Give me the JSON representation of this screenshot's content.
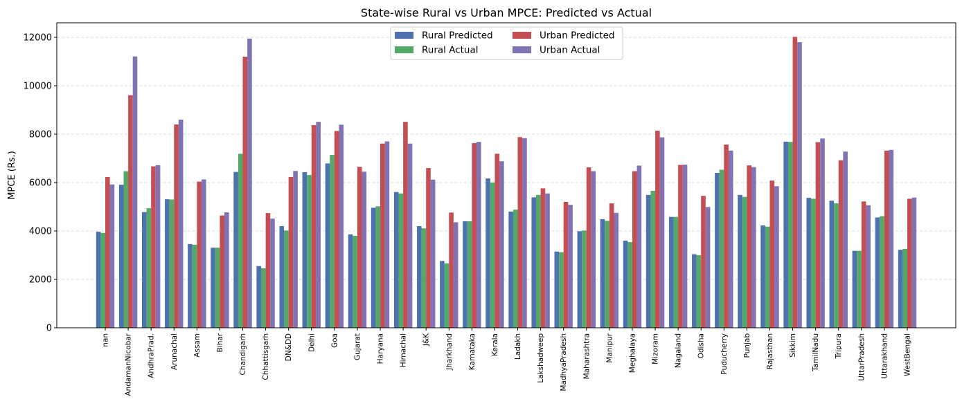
{
  "chart_data": {
    "type": "bar",
    "title": "State-wise Rural vs Urban MPCE: Predicted vs Actual",
    "xlabel": "",
    "ylabel": "MPCE (Rs.)",
    "ylim": [
      0,
      12600
    ],
    "yticks": [
      0,
      2000,
      4000,
      6000,
      8000,
      10000,
      12000
    ],
    "grid": "y-dashed",
    "legend_position": "top-center",
    "categories": [
      "nan",
      "AndamanNicobar",
      "AndhraPrad.",
      "Arunachal",
      "Assam",
      "Bihar",
      "Chandigarh",
      "Chhattisgarh",
      "DN&DD",
      "Delhi",
      "Goa",
      "Gujarat",
      "Haryana",
      "Himachal",
      "J&K",
      "Jharkhand",
      "Karnataka",
      "Kerala",
      "Ladakh",
      "Lakshadweep",
      "MadhyaPradesh",
      "Maharashtra",
      "Manipur",
      "Meghalaya",
      "Mizoram",
      "Nagaland",
      "Odisha",
      "Puducherry",
      "Punjab",
      "Rajasthan",
      "Sikkim",
      "TamilNadu",
      "Tripura",
      "UttarPradesh",
      "Uttarakhand",
      "WestBengal"
    ],
    "series": [
      {
        "name": "Rural Predicted",
        "color": "#4c72b0",
        "values": [
          3970,
          5910,
          4780,
          5310,
          3460,
          3310,
          6440,
          2550,
          4200,
          6430,
          6790,
          3860,
          4960,
          5610,
          4200,
          2760,
          4400,
          6170,
          4800,
          5390,
          3150,
          3990,
          4490,
          3600,
          5490,
          4580,
          3040,
          6400,
          5490,
          4230,
          7690,
          5370,
          5250,
          3180,
          4560,
          3220
        ]
      },
      {
        "name": "Rural Actual",
        "color": "#55a868",
        "values": [
          3920,
          6470,
          4940,
          5300,
          3430,
          3310,
          7190,
          2460,
          4020,
          6310,
          7140,
          3800,
          5020,
          5550,
          4110,
          2660,
          4400,
          6000,
          4880,
          5490,
          3120,
          4020,
          4420,
          3540,
          5660,
          4580,
          3000,
          6530,
          5410,
          4180,
          7680,
          5330,
          5140,
          3180,
          4610,
          3260
        ]
      },
      {
        "name": "Urban Predicted",
        "color": "#c44e52",
        "values": [
          6230,
          9610,
          6670,
          8400,
          6040,
          4640,
          11200,
          4740,
          6230,
          8370,
          8130,
          6650,
          7610,
          8510,
          6600,
          4760,
          7630,
          7190,
          7880,
          5760,
          5200,
          6630,
          5140,
          6470,
          8140,
          6730,
          5450,
          7570,
          6710,
          6080,
          12020,
          7670,
          6920,
          5220,
          7320,
          5330
        ]
      },
      {
        "name": "Urban Actual",
        "color": "#8172b3",
        "values": [
          5920,
          11210,
          6720,
          8600,
          6130,
          4770,
          11950,
          4510,
          6480,
          8510,
          8390,
          6450,
          7700,
          7610,
          6120,
          4360,
          7680,
          6880,
          7830,
          5550,
          5080,
          6470,
          4750,
          6700,
          7870,
          6740,
          4990,
          7320,
          6640,
          5850,
          11800,
          7820,
          7280,
          5060,
          7350,
          5380
        ]
      }
    ]
  }
}
